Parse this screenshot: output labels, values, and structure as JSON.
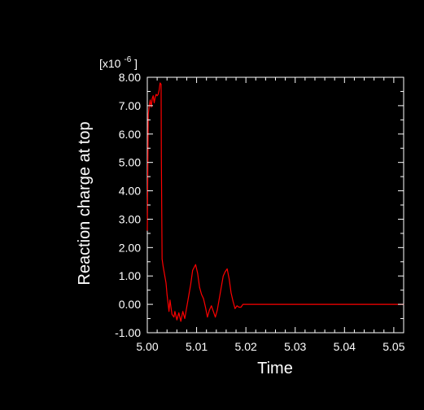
{
  "chart_data": {
    "type": "line",
    "xlabel": "Time",
    "ylabel": "Reaction charge at top",
    "y_multiplier": {
      "base": "[x10",
      "exponent": "-6",
      "close": "]"
    },
    "xlim": [
      5.0,
      5.052
    ],
    "ylim": [
      -1.0,
      8.0
    ],
    "x_ticks": [
      5.0,
      5.01,
      5.02,
      5.03,
      5.04,
      5.05
    ],
    "x_tick_labels": [
      "5.00",
      "5.01",
      "5.02",
      "5.03",
      "5.04",
      "5.05"
    ],
    "y_ticks": [
      -1.0,
      0.0,
      1.0,
      2.0,
      3.0,
      4.0,
      5.0,
      6.0,
      7.0,
      8.0
    ],
    "y_tick_labels": [
      "-1.00",
      "0.00",
      "1.00",
      "2.00",
      "3.00",
      "4.00",
      "5.00",
      "6.00",
      "7.00",
      "8.00"
    ],
    "grid": false,
    "colors": {
      "background": "#000000",
      "axes": "#ffffff",
      "text": "#ffffff",
      "line": "#ff0000"
    },
    "series": [
      {
        "x": [
          5.0,
          5.0002,
          5.0004,
          5.0006,
          5.0008,
          5.001,
          5.0012,
          5.0014,
          5.0016,
          5.0018,
          5.002,
          5.0022,
          5.0024,
          5.0026,
          5.0028,
          5.00285,
          5.003,
          5.0032,
          5.0035,
          5.0038,
          5.004,
          5.0042,
          5.0044,
          5.0046,
          5.005,
          5.0054,
          5.0056,
          5.006,
          5.0064,
          5.0068,
          5.0072,
          5.0076,
          5.008,
          5.0084,
          5.0088,
          5.0092,
          5.0098,
          5.0102,
          5.0106,
          5.011,
          5.0114,
          5.0118,
          5.0122,
          5.0126,
          5.013,
          5.0134,
          5.0138,
          5.0142,
          5.0146,
          5.015,
          5.0154,
          5.0158,
          5.0162,
          5.0166,
          5.017,
          5.0174,
          5.0178,
          5.0182,
          5.0186,
          5.019,
          5.0194,
          5.0195,
          5.02,
          5.03,
          5.04,
          5.05,
          5.052
        ],
        "y": [
          2.6,
          6.7,
          7.0,
          7.2,
          6.95,
          7.25,
          7.35,
          7.1,
          7.3,
          7.4,
          7.35,
          7.4,
          7.55,
          7.8,
          7.75,
          5.2,
          1.6,
          1.35,
          1.05,
          0.75,
          0.35,
          0.05,
          -0.25,
          0.15,
          -0.35,
          -0.45,
          -0.25,
          -0.55,
          -0.3,
          -0.6,
          -0.25,
          -0.5,
          -0.1,
          0.3,
          0.7,
          1.2,
          1.4,
          1.1,
          0.6,
          0.35,
          0.2,
          -0.1,
          -0.45,
          -0.2,
          -0.05,
          -0.25,
          -0.45,
          -0.2,
          0.2,
          0.6,
          1.0,
          1.15,
          1.25,
          0.9,
          0.4,
          0.1,
          -0.15,
          -0.05,
          -0.1,
          -0.1,
          0.0,
          0.0,
          0.0,
          0.0,
          0.0,
          0.0,
          0.0
        ]
      }
    ]
  }
}
